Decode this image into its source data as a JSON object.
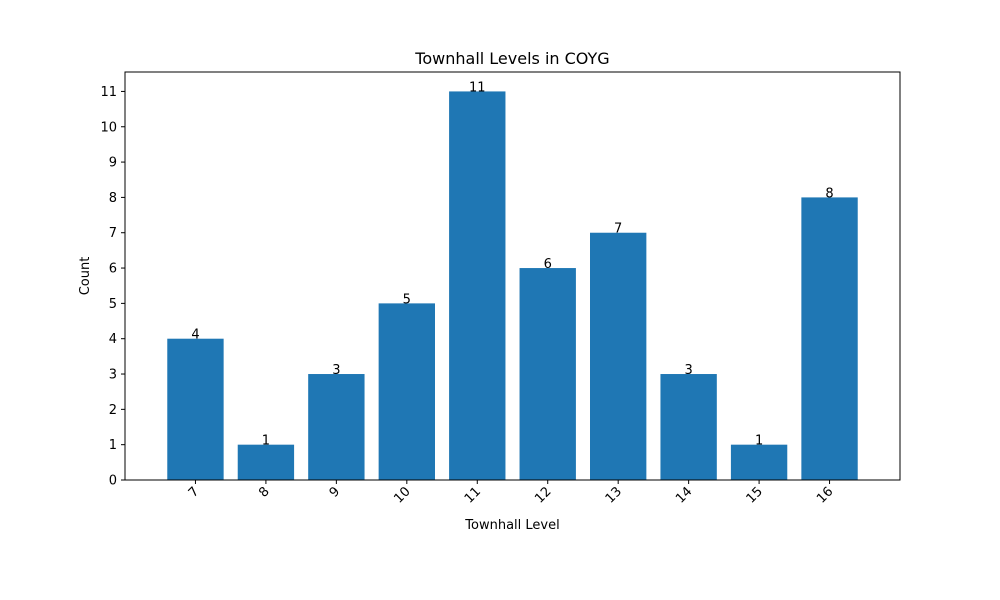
{
  "chart_data": {
    "type": "bar",
    "title": "Townhall Levels in COYG",
    "xlabel": "Townhall Level",
    "ylabel": "Count",
    "categories": [
      "7",
      "8",
      "9",
      "10",
      "11",
      "12",
      "13",
      "14",
      "15",
      "16"
    ],
    "values": [
      4,
      1,
      3,
      5,
      11,
      6,
      7,
      3,
      1,
      8
    ],
    "ylim": [
      0,
      11.55
    ],
    "yticks": [
      0,
      1,
      2,
      3,
      4,
      5,
      6,
      7,
      8,
      9,
      10,
      11
    ],
    "grid": false,
    "legend": "none",
    "bar_color": "#1f77b4"
  }
}
